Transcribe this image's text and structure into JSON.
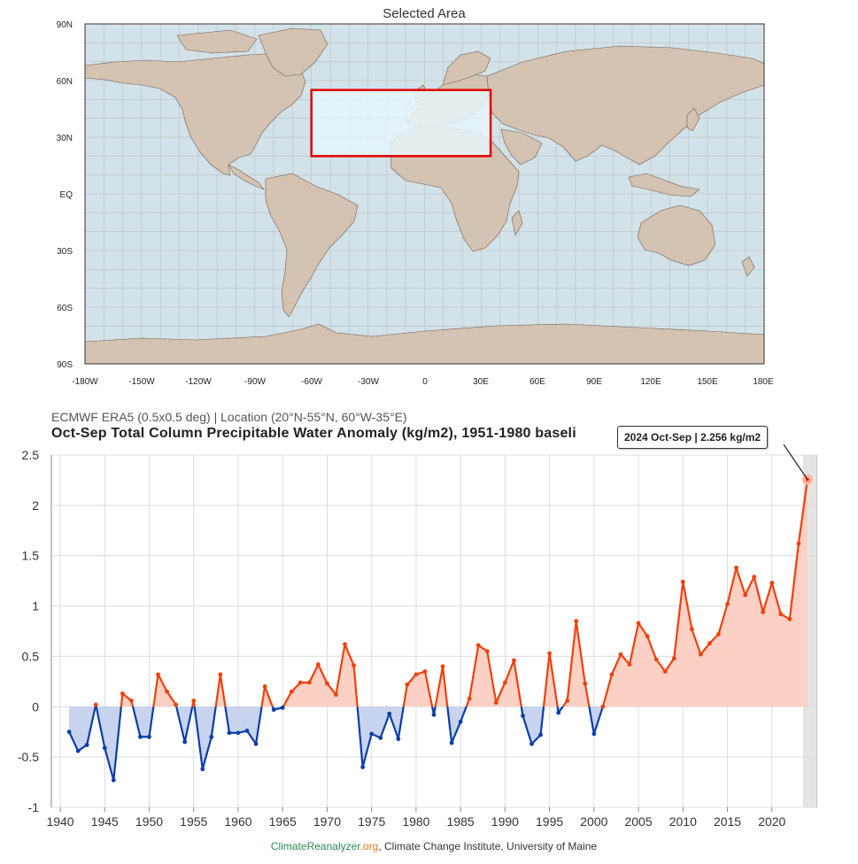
{
  "map": {
    "title": "Selected Area",
    "lat_labels": [
      "90N",
      "60N",
      "30N",
      "EQ",
      "30S",
      "60S",
      "90S"
    ],
    "lon_labels": [
      "-180W",
      "-150W",
      "-120W",
      "-90W",
      "-60W",
      "-30W",
      "0",
      "30E",
      "60E",
      "90E",
      "120E",
      "150E",
      "180E"
    ],
    "region": {
      "lat_min": 20,
      "lat_max": 55,
      "lon_min": -60,
      "lon_max": 35
    },
    "colors": {
      "ocean": "#d3e2e8",
      "land": "#d4c2b2",
      "region_border": "#e00000",
      "region_fill": "#e6f6fb"
    }
  },
  "chart": {
    "subtitle": "ECMWF ERA5 (0.5x0.5 deg) | Location (20°N-55°N, 60°W-35°E)",
    "title": "Oct-Sep Total Column Precipitable Water Anomaly (kg/m2), 1951-1980 baseli",
    "tooltip": "2024 Oct-Sep | 2.256 kg/m2",
    "credits": {
      "part1": "Climate",
      "part2": "Reanalyzer",
      "part3": ".org",
      "part4": ", Climate Change Institute, University of Maine"
    }
  },
  "chart_data": {
    "type": "area",
    "title": "Oct-Sep Total Column Precipitable Water Anomaly (kg/m2), 1951-1980 baseli",
    "xlabel": "",
    "ylabel": "",
    "xlim": [
      1939,
      2025
    ],
    "ylim": [
      -1,
      2.5
    ],
    "yticks": [
      -1,
      -0.5,
      0,
      0.5,
      1,
      1.5,
      2,
      2.5
    ],
    "ytick_labels": [
      "-1",
      "-0.5",
      "0",
      "0.5",
      "1",
      "1.5",
      "2",
      "2.5"
    ],
    "xticks": [
      1940,
      1945,
      1950,
      1955,
      1960,
      1965,
      1970,
      1975,
      1980,
      1985,
      1990,
      1995,
      2000,
      2005,
      2010,
      2015,
      2020
    ],
    "colors": {
      "positive": "#f0400a",
      "negative": "#0b3ea8",
      "positive_fill": "#fdd0c5",
      "negative_fill": "#c8d3ee",
      "highlight_band": "#e4e4e4"
    },
    "highlight": {
      "x": 2024,
      "y": 2.256
    },
    "x": [
      1941,
      1942,
      1943,
      1944,
      1945,
      1946,
      1947,
      1948,
      1949,
      1950,
      1951,
      1952,
      1953,
      1954,
      1955,
      1956,
      1957,
      1958,
      1959,
      1960,
      1961,
      1962,
      1963,
      1964,
      1965,
      1966,
      1967,
      1968,
      1969,
      1970,
      1971,
      1972,
      1973,
      1974,
      1975,
      1976,
      1977,
      1978,
      1979,
      1980,
      1981,
      1982,
      1983,
      1984,
      1985,
      1986,
      1987,
      1988,
      1989,
      1990,
      1991,
      1992,
      1993,
      1994,
      1995,
      1996,
      1997,
      1998,
      1999,
      2000,
      2001,
      2002,
      2003,
      2004,
      2005,
      2006,
      2007,
      2008,
      2009,
      2010,
      2011,
      2012,
      2013,
      2014,
      2015,
      2016,
      2017,
      2018,
      2019,
      2020,
      2021,
      2022,
      2023,
      2024
    ],
    "values": [
      -0.25,
      -0.44,
      -0.38,
      0.02,
      -0.41,
      -0.73,
      0.13,
      0.06,
      -0.3,
      -0.3,
      0.32,
      0.15,
      0.02,
      -0.35,
      0.06,
      -0.62,
      -0.3,
      0.32,
      -0.26,
      -0.26,
      -0.24,
      -0.37,
      0.2,
      -0.03,
      -0.01,
      0.15,
      0.24,
      0.24,
      0.42,
      0.23,
      0.12,
      0.62,
      0.41,
      -0.6,
      -0.27,
      -0.31,
      -0.07,
      -0.32,
      0.22,
      0.32,
      0.35,
      -0.08,
      0.4,
      -0.36,
      -0.15,
      0.08,
      0.61,
      0.55,
      0.04,
      0.24,
      0.46,
      -0.09,
      -0.37,
      -0.28,
      0.53,
      -0.06,
      0.06,
      0.85,
      0.23,
      -0.27,
      0.0,
      0.32,
      0.52,
      0.42,
      0.83,
      0.7,
      0.47,
      0.35,
      0.48,
      1.24,
      0.77,
      0.52,
      0.63,
      0.72,
      1.02,
      1.38,
      1.11,
      1.29,
      0.94,
      1.23,
      0.92,
      0.87,
      1.62,
      2.256
    ]
  }
}
